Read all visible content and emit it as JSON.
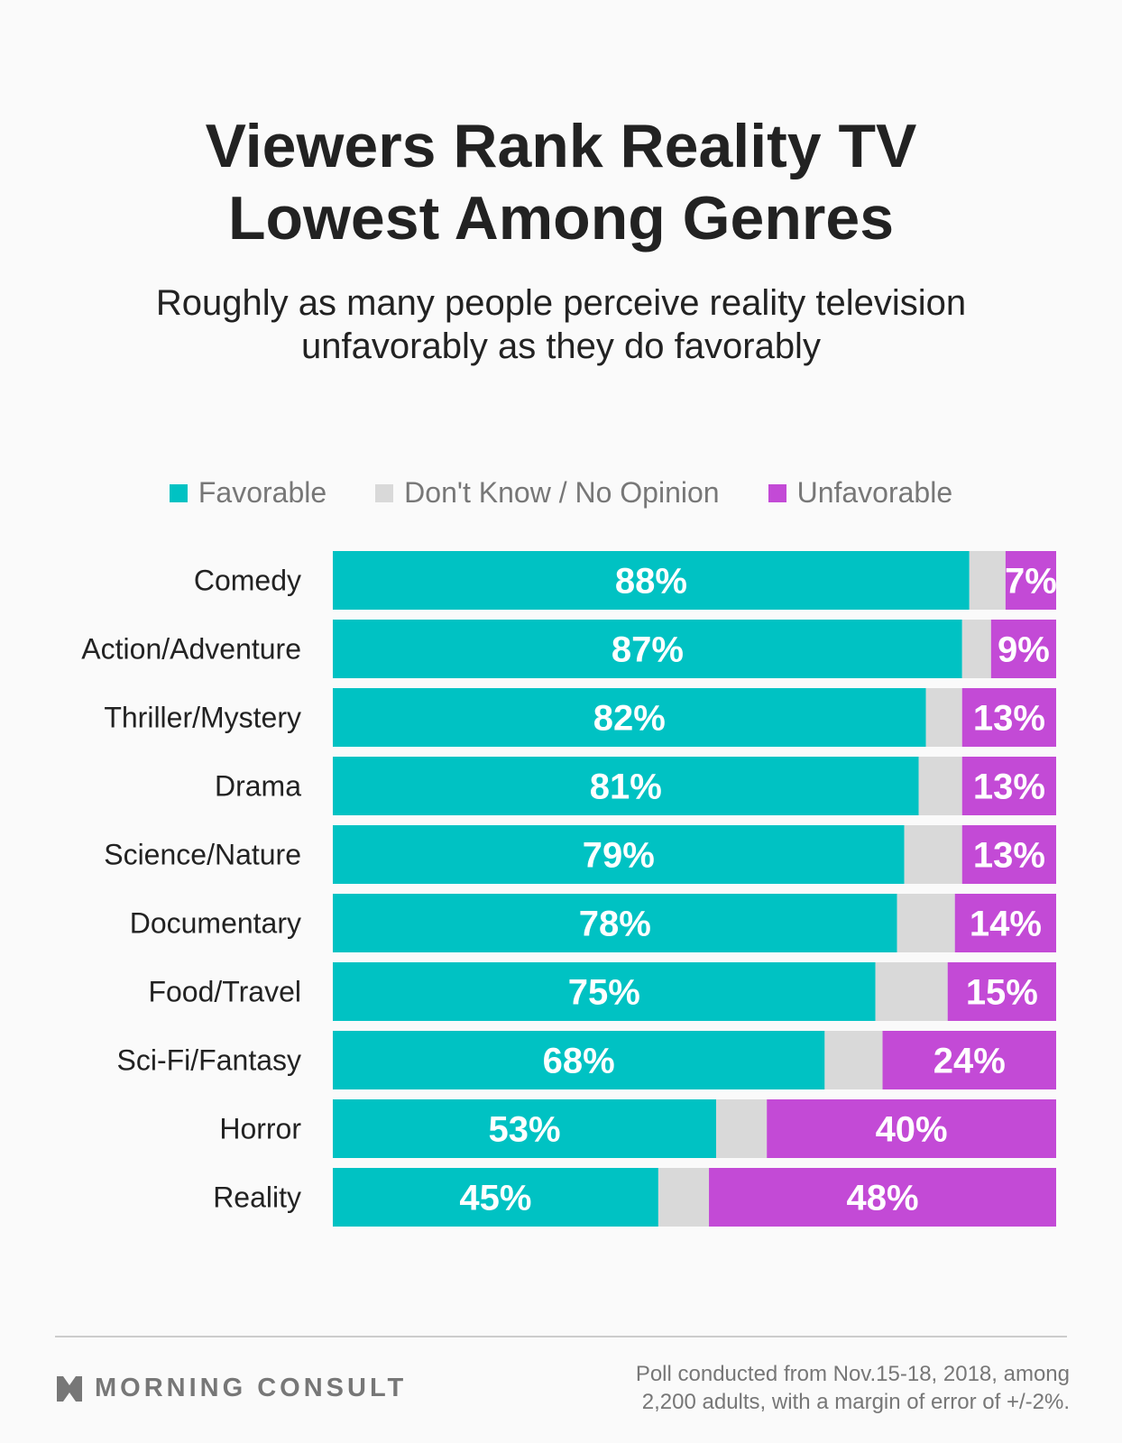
{
  "title_lines": [
    "Viewers Rank Reality TV",
    "Lowest Among Genres"
  ],
  "subtitle_lines": [
    "Roughly as many people perceive reality television",
    "unfavorably as they do favorably"
  ],
  "footer": {
    "brand": "MORNING CONSULT",
    "note_lines": [
      "Poll conducted from Nov.15-18, 2018, among",
      "2,200 adults, with a margin of error of +/-2%."
    ]
  },
  "chart_data": {
    "type": "bar",
    "orientation": "horizontal",
    "stacked": true,
    "categories": [
      "Comedy",
      "Action/Adventure",
      "Thriller/Mystery",
      "Drama",
      "Science/Nature",
      "Documentary",
      "Food/Travel",
      "Sci-Fi/Fantasy",
      "Horror",
      "Reality"
    ],
    "series": [
      {
        "name": "Favorable",
        "color": "#00c2c3",
        "values": [
          88,
          87,
          82,
          81,
          79,
          78,
          75,
          68,
          53,
          45
        ],
        "labels": [
          "88%",
          "87%",
          "82%",
          "81%",
          "79%",
          "78%",
          "75%",
          "68%",
          "53%",
          "45%"
        ]
      },
      {
        "name": "Don't Know / No Opinion",
        "color": "#d9d9d9",
        "values": [
          5,
          4,
          5,
          6,
          8,
          8,
          10,
          8,
          7,
          7
        ]
      },
      {
        "name": "Unfavorable",
        "color": "#c34ad6",
        "values": [
          7,
          9,
          13,
          13,
          13,
          14,
          15,
          24,
          40,
          48
        ],
        "labels": [
          "7%",
          "9%",
          "13%",
          "13%",
          "13%",
          "14%",
          "15%",
          "24%",
          "40%",
          "48%"
        ]
      }
    ],
    "xlim": [
      0,
      100
    ],
    "grid": false,
    "legend_placement": "top"
  }
}
